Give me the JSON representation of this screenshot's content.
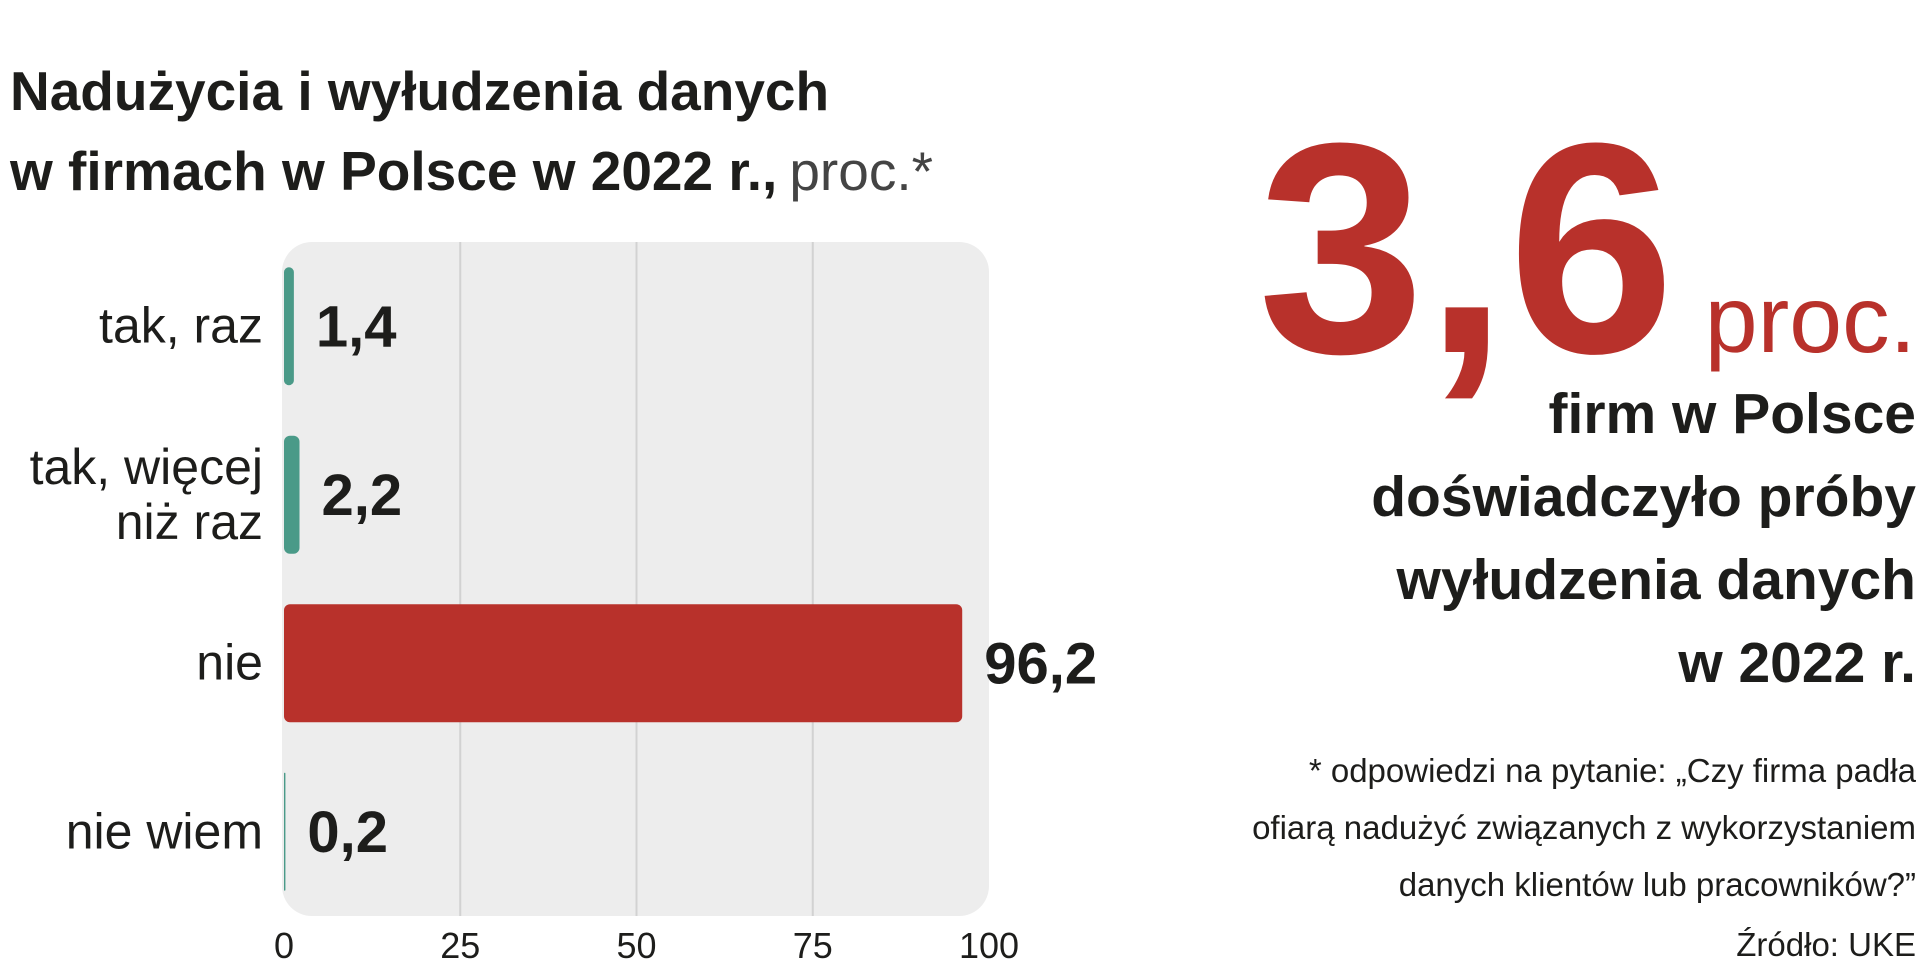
{
  "chart_data": {
    "type": "bar",
    "orientation": "horizontal",
    "title": [
      "Nadużycia i wyłudzenia danych",
      "w firmach w Polsce w 2022 r.,"
    ],
    "title_suffix": "proc.*",
    "categories": [
      "tak, raz",
      "tak, więcej\nniż raz",
      "nie",
      "nie wiem"
    ],
    "values": [
      1.4,
      2.2,
      96.2,
      0.2
    ],
    "value_labels": [
      "1,4",
      "2,2",
      "96,2",
      "0,2"
    ],
    "colors": [
      "#4a9a88",
      "#4a9a88",
      "#b8312b",
      "#4a9a88"
    ],
    "xlim": [
      0,
      100
    ],
    "xticks": [
      0,
      25,
      50,
      75,
      100
    ],
    "grid": true
  },
  "highlight": {
    "value": "3,6",
    "unit": "proc.",
    "description": [
      "firm w Polsce",
      "doświadczyło próby",
      "wyłudzenia danych",
      "w 2022 r."
    ]
  },
  "note": [
    "* odpowiedzi na pytanie: „Czy firma padła",
    "ofiarą nadużyć związanych z wykorzystaniem",
    "danych klientów lub pracowników?”"
  ],
  "source": "Źródło: UKE"
}
